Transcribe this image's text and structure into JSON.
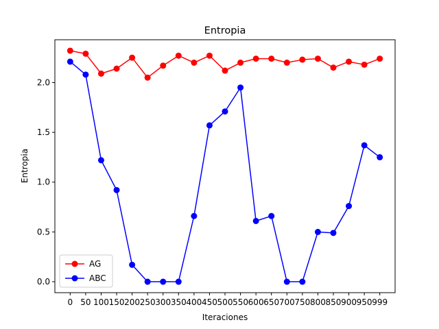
{
  "chart_data": {
    "type": "line",
    "title": "Entropia",
    "xlabel": "Iteraciones",
    "ylabel": "Entropia",
    "x": [
      "0",
      "50",
      "100",
      "150",
      "200",
      "250",
      "300",
      "350",
      "400",
      "450",
      "500",
      "550",
      "600",
      "650",
      "700",
      "750",
      "800",
      "850",
      "900",
      "950",
      "999"
    ],
    "ylim": [
      -0.11,
      2.43
    ],
    "yticks": [
      "0.0",
      "0.5",
      "1.0",
      "1.5",
      "2.0"
    ],
    "grid": false,
    "legend_position": "lower-left",
    "series": [
      {
        "name": "AG",
        "color": "#ff0000",
        "values": [
          2.32,
          2.29,
          2.09,
          2.14,
          2.25,
          2.05,
          2.17,
          2.27,
          2.2,
          2.27,
          2.12,
          2.2,
          2.24,
          2.24,
          2.2,
          2.23,
          2.24,
          2.15,
          2.21,
          2.18,
          2.24
        ]
      },
      {
        "name": "ABC",
        "color": "#0000ff",
        "values": [
          2.21,
          2.08,
          1.22,
          0.92,
          0.17,
          0.0,
          0.0,
          0.0,
          0.66,
          1.57,
          1.71,
          1.95,
          0.61,
          0.66,
          0.0,
          0.0,
          0.5,
          0.49,
          0.76,
          1.37,
          1.25
        ]
      }
    ]
  }
}
